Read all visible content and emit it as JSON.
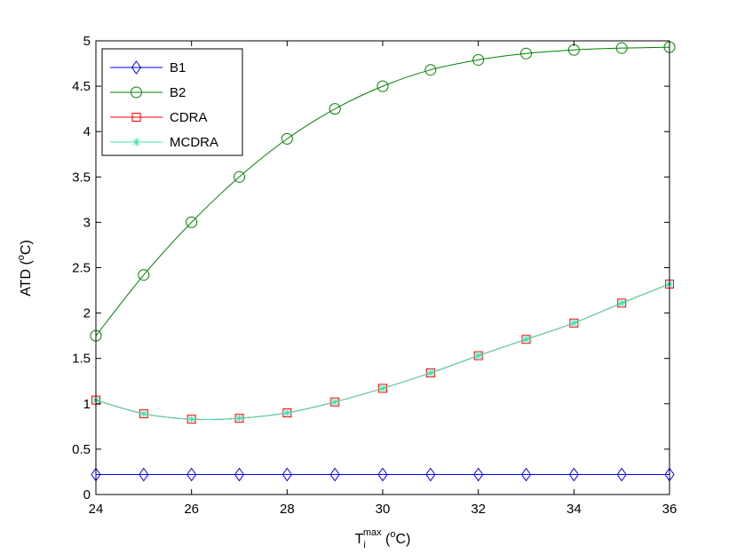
{
  "chart_data": {
    "type": "line",
    "title": "",
    "x": [
      24,
      25,
      26,
      27,
      28,
      29,
      30,
      31,
      32,
      33,
      34,
      35,
      36
    ],
    "xlim": [
      24,
      36
    ],
    "ylim": [
      0,
      5
    ],
    "xticks": [
      "24",
      "26",
      "28",
      "30",
      "32",
      "34",
      "36"
    ],
    "yticks": [
      "0",
      "0.5",
      "1",
      "1.5",
      "2",
      "2.5",
      "3",
      "3.5",
      "4",
      "4.5",
      "5"
    ],
    "xlabel": {
      "base": "T",
      "sub": "i",
      "sup": "max",
      "unit_open": " (",
      "unit_sup": "o",
      "unit_close": "C)"
    },
    "ylabel": {
      "text": "ATD (",
      "sup": "o",
      "close": "C)"
    },
    "grid": false,
    "legend_position": "top-left",
    "series": [
      {
        "name": "B1",
        "color": "#0000ff",
        "marker": "diamond",
        "values": [
          0.22,
          0.22,
          0.22,
          0.22,
          0.22,
          0.22,
          0.22,
          0.22,
          0.22,
          0.22,
          0.22,
          0.22,
          0.22
        ]
      },
      {
        "name": "B2",
        "color": "#008000",
        "marker": "circle",
        "values": [
          1.75,
          2.42,
          3.0,
          3.5,
          3.92,
          4.25,
          4.5,
          4.68,
          4.79,
          4.86,
          4.9,
          4.92,
          4.93
        ]
      },
      {
        "name": "CDRA",
        "color": "#ff0000",
        "marker": "square",
        "values": [
          1.04,
          0.89,
          0.83,
          0.84,
          0.9,
          1.02,
          1.17,
          1.34,
          1.53,
          1.71,
          1.89,
          2.11,
          2.32
        ]
      },
      {
        "name": "MCDRA",
        "color": "#40e0b0",
        "marker": "asterisk",
        "values": [
          1.04,
          0.89,
          0.83,
          0.84,
          0.9,
          1.02,
          1.17,
          1.34,
          1.53,
          1.71,
          1.89,
          2.11,
          2.32
        ]
      }
    ]
  }
}
